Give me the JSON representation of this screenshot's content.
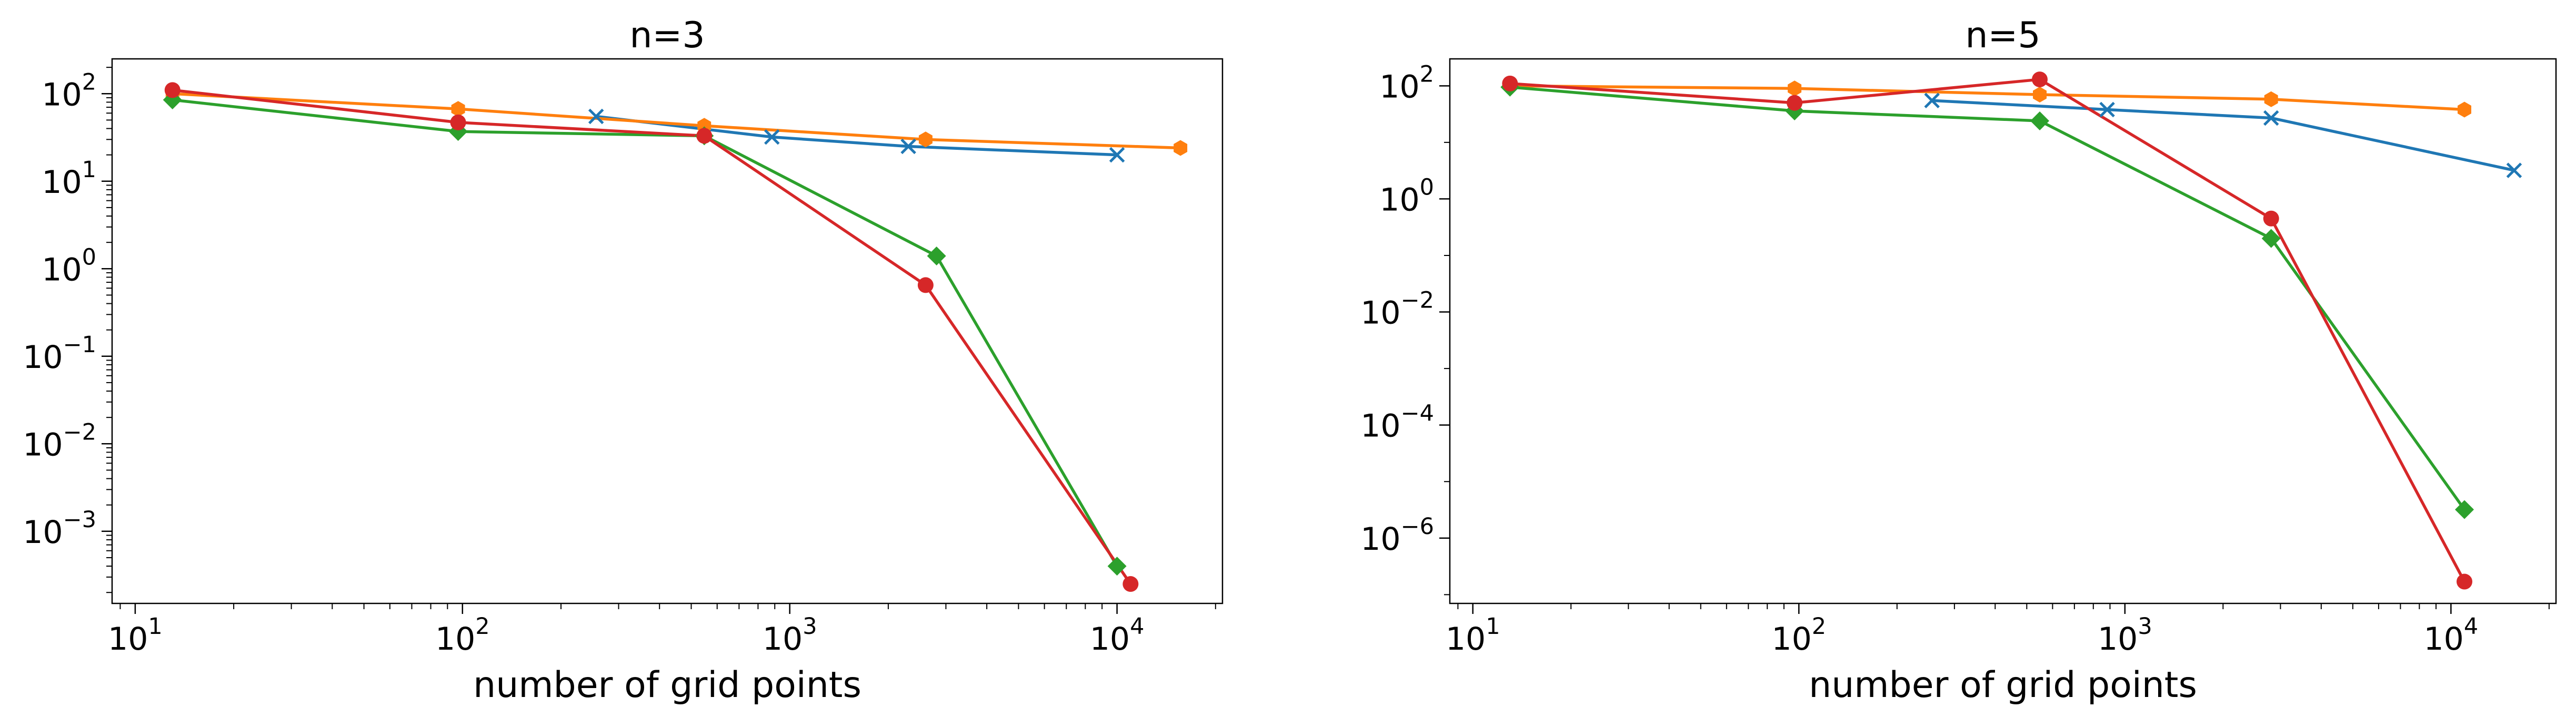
{
  "figure": {
    "xlabel": "number of grid points"
  },
  "colors": {
    "blue": "#1f77b4",
    "orange": "#ff7f0e",
    "green": "#2ca02c",
    "red": "#d62728"
  },
  "chart_data": [
    {
      "type": "line",
      "title": "n=3",
      "xlabel": "number of grid points",
      "ylabel": "",
      "xscale": "log",
      "yscale": "log",
      "xlim": [
        8.5,
        21000
      ],
      "ylim": [
        0.00015,
        250
      ],
      "grid": false,
      "legend": "none",
      "xticks": [
        {
          "value": 10,
          "base": "10",
          "exp": "1"
        },
        {
          "value": 100,
          "base": "10",
          "exp": "2"
        },
        {
          "value": 1000,
          "base": "10",
          "exp": "3"
        },
        {
          "value": 10000,
          "base": "10",
          "exp": "4"
        }
      ],
      "yticks": [
        {
          "value": 0.001,
          "base": "10",
          "exp": "−3"
        },
        {
          "value": 0.01,
          "base": "10",
          "exp": "−2"
        },
        {
          "value": 0.1,
          "base": "10",
          "exp": "−1"
        },
        {
          "value": 1,
          "base": "10",
          "exp": "0"
        },
        {
          "value": 10,
          "base": "10",
          "exp": "1"
        },
        {
          "value": 100,
          "base": "10",
          "exp": "2"
        }
      ],
      "series": [
        {
          "name": "blue",
          "color": "#1f77b4",
          "marker": "x",
          "x": [
            256,
            882,
            2304,
            10000
          ],
          "y": [
            55,
            32,
            25,
            20
          ]
        },
        {
          "name": "orange",
          "color": "#ff7f0e",
          "marker": "hexagon",
          "x": [
            13,
            97,
            548,
            2601,
            15625
          ],
          "y": [
            100,
            67,
            43,
            30,
            24
          ]
        },
        {
          "name": "green",
          "color": "#2ca02c",
          "marker": "diamond",
          "x": [
            13,
            97,
            548,
            2809,
            10000
          ],
          "y": [
            85,
            37,
            33,
            1.4,
            0.0004
          ]
        },
        {
          "name": "red",
          "color": "#d62728",
          "marker": "circle",
          "x": [
            13,
            97,
            548,
            2601,
            11000
          ],
          "y": [
            110,
            47,
            33,
            0.65,
            0.00025
          ]
        }
      ]
    },
    {
      "type": "line",
      "title": "n=5",
      "xlabel": "number of grid points",
      "ylabel": "",
      "xscale": "log",
      "yscale": "log",
      "xlim": [
        8.5,
        21000
      ],
      "ylim": [
        7e-08,
        300
      ],
      "grid": false,
      "legend": "none",
      "xticks": [
        {
          "value": 10,
          "base": "10",
          "exp": "1"
        },
        {
          "value": 100,
          "base": "10",
          "exp": "2"
        },
        {
          "value": 1000,
          "base": "10",
          "exp": "3"
        },
        {
          "value": 10000,
          "base": "10",
          "exp": "4"
        }
      ],
      "yticks": [
        {
          "value": 1e-06,
          "base": "10",
          "exp": "−6"
        },
        {
          "value": 0.0001,
          "base": "10",
          "exp": "−4"
        },
        {
          "value": 0.01,
          "base": "10",
          "exp": "−2"
        },
        {
          "value": 1,
          "base": "10",
          "exp": "0"
        },
        {
          "value": 100,
          "base": "10",
          "exp": "2"
        }
      ],
      "series": [
        {
          "name": "blue",
          "color": "#1f77b4",
          "marker": "x",
          "x": [
            256,
            882,
            2809,
            15625
          ],
          "y": [
            55,
            38,
            27,
            3.2
          ]
        },
        {
          "name": "orange",
          "color": "#ff7f0e",
          "marker": "hexagon",
          "x": [
            13,
            97,
            548,
            2809,
            11000
          ],
          "y": [
            100,
            90,
            70,
            58,
            38
          ]
        },
        {
          "name": "green",
          "color": "#2ca02c",
          "marker": "diamond",
          "x": [
            13,
            97,
            548,
            2809,
            11000
          ],
          "y": [
            95,
            36,
            24,
            0.2,
            3.2e-06
          ]
        },
        {
          "name": "red",
          "color": "#d62728",
          "marker": "circle",
          "x": [
            13,
            97,
            548,
            2809,
            11000
          ],
          "y": [
            110,
            50,
            130,
            0.45,
            1.7e-07
          ]
        }
      ]
    }
  ]
}
